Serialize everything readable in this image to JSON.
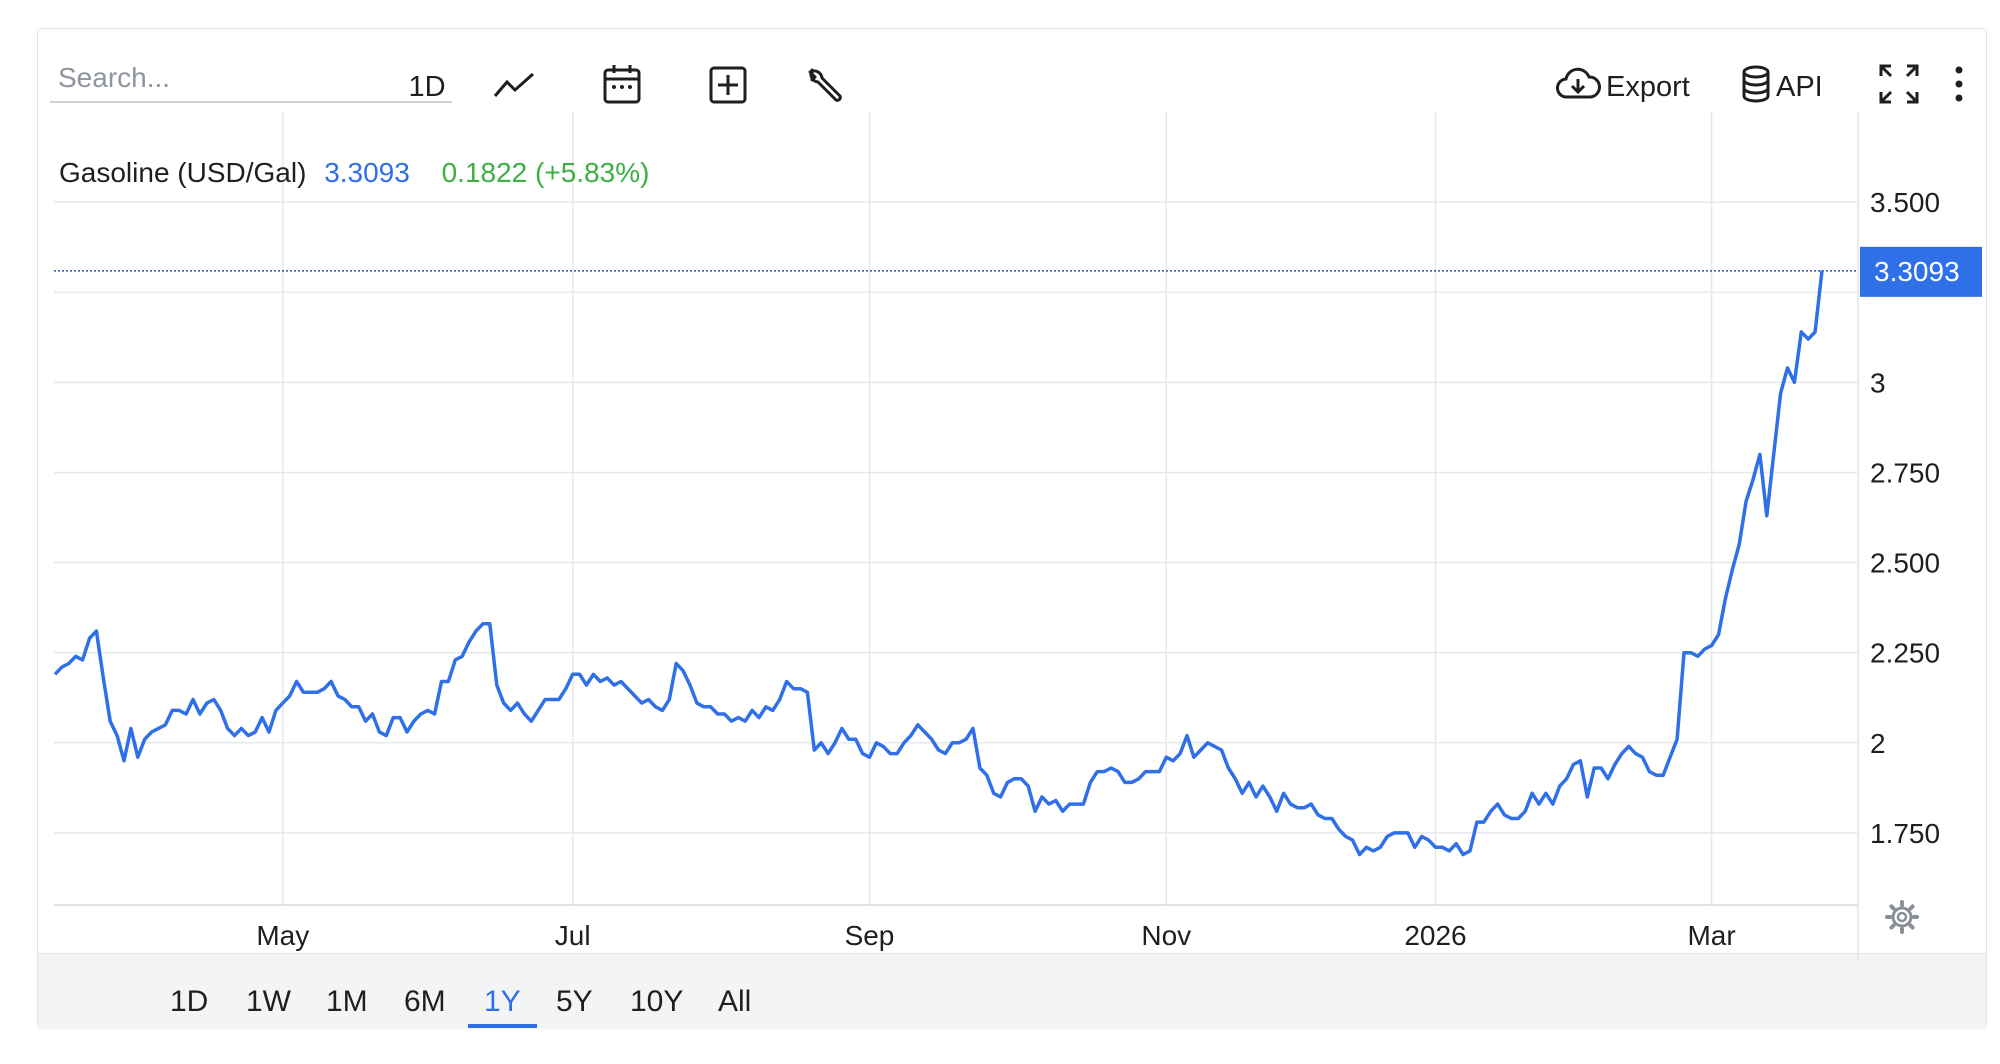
{
  "toolbar": {
    "search_placeholder": "Search...",
    "interval_label": "1D",
    "chart_type_icon": "line-chart-icon",
    "calendar_icon": "calendar-icon",
    "compare_icon": "plus-box-icon",
    "settings_tool_icon": "wrench-icon",
    "export_label": "Export",
    "export_icon": "cloud-download-icon",
    "api_label": "API",
    "api_icon": "database-icon",
    "fullscreen_icon": "fullscreen-icon",
    "more_icon": "more-vertical-icon"
  },
  "legend": {
    "instrument": "Gasoline (USD/Gal)",
    "last_value": "3.3093",
    "change": "0.1822 (+5.83%)"
  },
  "price_tag": "3.3093",
  "periods": [
    {
      "label": "1D",
      "active": false
    },
    {
      "label": "1W",
      "active": false
    },
    {
      "label": "1M",
      "active": false
    },
    {
      "label": "6M",
      "active": false
    },
    {
      "label": "1Y",
      "active": true
    },
    {
      "label": "5Y",
      "active": false
    },
    {
      "label": "10Y",
      "active": false
    },
    {
      "label": "All",
      "active": false
    }
  ],
  "colors": {
    "line": "#2f6fe8",
    "change_positive": "#3cb043",
    "grid": "#e6e8eb",
    "price_tag_bg": "#2f6fe8"
  },
  "chart_data": {
    "type": "line",
    "series": [
      {
        "values": [
          2.19,
          2.21,
          2.22,
          2.24,
          2.23,
          2.29,
          2.31,
          2.18,
          2.06,
          2.02,
          1.95,
          2.04,
          1.96,
          2.01,
          2.03,
          2.04,
          2.05,
          2.09,
          2.09,
          2.08,
          2.12,
          2.08,
          2.11,
          2.12,
          2.09,
          2.04,
          2.02,
          2.04,
          2.02,
          2.03,
          2.07,
          2.03,
          2.09,
          2.11,
          2.13,
          2.17,
          2.14,
          2.14,
          2.14,
          2.15,
          2.17,
          2.13,
          2.12,
          2.1,
          2.1,
          2.06,
          2.08,
          2.03,
          2.02,
          2.07,
          2.07,
          2.03,
          2.06,
          2.08,
          2.09,
          2.08,
          2.17,
          2.17,
          2.23,
          2.24,
          2.28,
          2.31,
          2.33,
          2.33,
          2.16,
          2.11,
          2.09,
          2.11,
          2.08,
          2.06,
          2.09,
          2.12,
          2.12,
          2.12,
          2.15,
          2.19,
          2.19,
          2.16,
          2.19,
          2.17,
          2.18,
          2.16,
          2.17,
          2.15,
          2.13,
          2.11,
          2.12,
          2.1,
          2.09,
          2.12,
          2.22,
          2.2,
          2.16,
          2.11,
          2.1,
          2.1,
          2.08,
          2.08,
          2.06,
          2.07,
          2.06,
          2.09,
          2.07,
          2.1,
          2.09,
          2.12,
          2.17,
          2.15,
          2.15,
          2.14,
          1.98,
          2.0,
          1.97,
          2.0,
          2.04,
          2.01,
          2.01,
          1.97,
          1.96,
          2.0,
          1.99,
          1.97,
          1.97,
          2.0,
          2.02,
          2.05,
          2.03,
          2.01,
          1.98,
          1.97,
          2.0,
          2.0,
          2.01,
          2.04,
          1.93,
          1.91,
          1.86,
          1.85,
          1.89,
          1.9,
          1.9,
          1.88,
          1.81,
          1.85,
          1.83,
          1.84,
          1.81,
          1.83,
          1.83,
          1.83,
          1.89,
          1.92,
          1.92,
          1.93,
          1.92,
          1.89,
          1.89,
          1.9,
          1.92,
          1.92,
          1.92,
          1.96,
          1.95,
          1.97,
          2.02,
          1.96,
          1.98,
          2.0,
          1.99,
          1.98,
          1.93,
          1.9,
          1.86,
          1.89,
          1.85,
          1.88,
          1.85,
          1.81,
          1.86,
          1.83,
          1.82,
          1.82,
          1.83,
          1.8,
          1.79,
          1.79,
          1.76,
          1.74,
          1.73,
          1.69,
          1.71,
          1.7,
          1.71,
          1.74,
          1.75,
          1.75,
          1.75,
          1.71,
          1.74,
          1.73,
          1.71,
          1.71,
          1.7,
          1.72,
          1.69,
          1.7,
          1.78,
          1.78,
          1.81,
          1.83,
          1.8,
          1.79,
          1.79,
          1.81,
          1.86,
          1.83,
          1.86,
          1.83,
          1.88,
          1.9,
          1.94,
          1.95,
          1.85,
          1.93,
          1.93,
          1.9,
          1.94,
          1.97,
          1.99,
          1.97,
          1.96,
          1.92,
          1.91,
          1.91,
          1.96,
          2.01,
          2.25,
          2.25,
          2.24,
          2.26,
          2.27,
          2.3,
          2.4,
          2.48,
          2.55,
          2.67,
          2.73,
          2.8,
          2.63,
          2.8,
          2.97,
          3.04,
          3.0,
          3.14,
          3.12,
          3.14,
          3.31
        ]
      }
    ],
    "x_ticks": [
      "May",
      "Jul",
      "Sep",
      "Nov",
      "2026",
      "Mar"
    ],
    "x_tick_index": [
      33,
      75,
      118,
      161,
      200,
      240
    ],
    "y_ticks": [
      {
        "value": 1.75,
        "label": "1.750"
      },
      {
        "value": 2.0,
        "label": "2"
      },
      {
        "value": 2.25,
        "label": "2.250"
      },
      {
        "value": 2.5,
        "label": "2.500"
      },
      {
        "value": 2.75,
        "label": "2.750"
      },
      {
        "value": 3.0,
        "label": "3"
      },
      {
        "value": 3.25,
        "label": ""
      },
      {
        "value": 3.5,
        "label": "3.500"
      }
    ],
    "ylim": [
      1.55,
      3.75
    ],
    "last_value": 3.3093,
    "grid": true
  }
}
